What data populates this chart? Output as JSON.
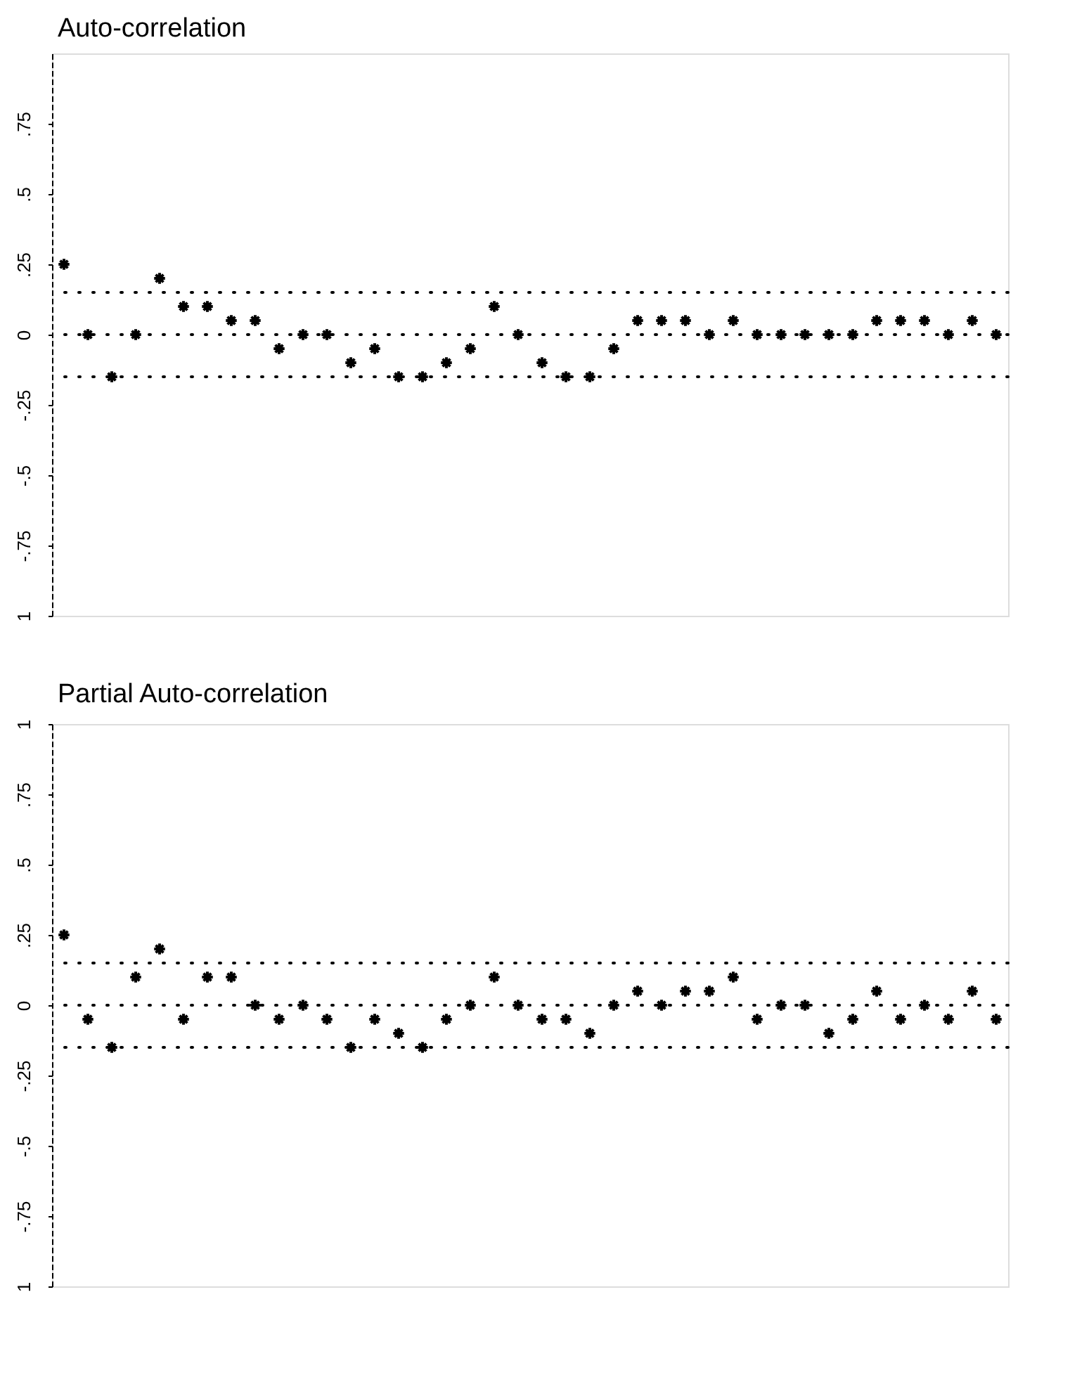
{
  "chart_data": [
    {
      "type": "scatter",
      "title": "Auto-correlation",
      "categories": [
        null,
        null,
        null,
        null,
        null,
        null,
        null,
        null,
        null,
        null,
        null,
        null,
        null,
        null,
        null,
        null,
        null,
        null,
        null,
        null,
        null,
        null,
        null,
        null,
        null,
        null,
        null,
        null,
        null,
        null,
        null,
        null,
        null,
        null,
        null,
        null,
        null,
        null,
        null,
        null
      ],
      "values": [
        0.25,
        0,
        -0.15,
        0,
        0.2,
        0.1,
        0.1,
        0.05,
        0.05,
        -0.05,
        0,
        0,
        -0.1,
        -0.05,
        -0.15,
        -0.15,
        -0.1,
        -0.05,
        0.1,
        0,
        -0.1,
        -0.15,
        -0.15,
        -0.05,
        0.05,
        0.05,
        0.05,
        0,
        0.05,
        0,
        0,
        0,
        0,
        0,
        0.05,
        0.05,
        0.05,
        0,
        0.05,
        0
      ],
      "color": "#000000",
      "marker": "cross",
      "grid": false,
      "tick_labels": "y",
      "ylim": [
        -1,
        1
      ],
      "yticks": [
        {
          "value": -1,
          "label": "1"
        },
        {
          "value": -0.75,
          "label": "-.75"
        },
        {
          "value": -0.5,
          "label": "-.5"
        },
        {
          "value": -0.25,
          "label": "-.25"
        },
        0,
        {
          "value": 0.25,
          "label": ".25"
        },
        {
          "value": 0.5,
          "label": ".5"
        },
        {
          "value": 0.75,
          "label": ".75"
        }
      ],
      "ref_lines": [
        {
          "axis": "y",
          "value": 0.15,
          "line_style": "dotted",
          "color": "#000000"
        },
        {
          "axis": "y",
          "value": 0,
          "line_style": "dotted",
          "color": "#000000"
        },
        {
          "axis": "y",
          "value": -0.15,
          "line_style": "dotted",
          "color": "#000000"
        }
      ]
    },
    {
      "type": "scatter",
      "title": "Partial Auto-correlation",
      "categories": [
        null,
        null,
        null,
        null,
        null,
        null,
        null,
        null,
        null,
        null,
        null,
        null,
        null,
        null,
        null,
        null,
        null,
        null,
        null,
        null,
        null,
        null,
        null,
        null,
        null,
        null,
        null,
        null,
        null,
        null,
        null,
        null,
        null,
        null,
        null,
        null,
        null,
        null,
        null,
        null
      ],
      "values": [
        0.25,
        -0.05,
        -0.15,
        0.1,
        0.2,
        -0.05,
        0.1,
        0.1,
        0,
        -0.05,
        0,
        -0.05,
        -0.15,
        -0.05,
        -0.1,
        -0.15,
        -0.05,
        0,
        0.1,
        0,
        -0.05,
        -0.05,
        -0.1,
        0,
        0.05,
        0,
        0.05,
        0.05,
        0.1,
        -0.05,
        0,
        0,
        -0.1,
        -0.05,
        0.05,
        -0.05,
        0,
        -0.05,
        0.05,
        -0.05
      ],
      "color": "#000000",
      "marker": "cross",
      "grid": false,
      "tick_labels": "y",
      "ylim": [
        -1,
        1
      ],
      "yticks": [
        {
          "value": -1,
          "label": "1"
        },
        {
          "value": -0.75,
          "label": "-.75"
        },
        {
          "value": -0.5,
          "label": "-.5"
        },
        {
          "value": -0.25,
          "label": "-.25"
        },
        0,
        {
          "value": 0.25,
          "label": ".25"
        },
        {
          "value": 0.5,
          "label": ".5"
        },
        {
          "value": 0.75,
          "label": ".75"
        },
        1
      ],
      "ref_lines": [
        {
          "axis": "y",
          "value": 0.15,
          "line_style": "dotted",
          "color": "#000000"
        },
        {
          "axis": "y",
          "value": 0,
          "line_style": "dotted",
          "color": "#000000"
        },
        {
          "axis": "y",
          "value": -0.15,
          "line_style": "dotted",
          "color": "#000000"
        }
      ]
    }
  ]
}
